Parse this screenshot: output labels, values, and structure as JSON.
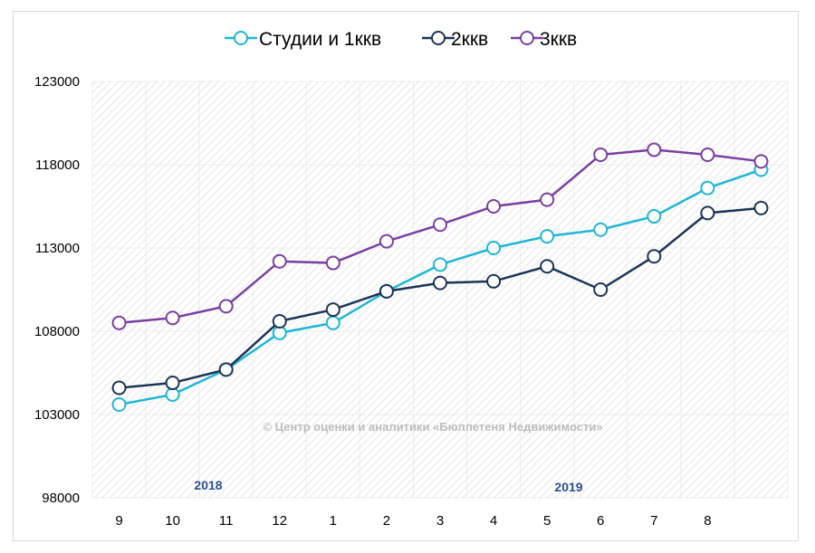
{
  "chart_data": {
    "type": "line",
    "title": "",
    "xlabel": "",
    "ylabel": "",
    "categories": [
      "9",
      "10",
      "11",
      "12",
      "1",
      "2",
      "3",
      "4",
      "5",
      "6",
      "7",
      "8",
      ""
    ],
    "ylim": [
      98000,
      123000
    ],
    "yticks": [
      "123000",
      "118000",
      "113000",
      "108000",
      "103000",
      "98000"
    ],
    "ytick_values": [
      123000,
      118000,
      113000,
      108000,
      103000,
      98000
    ],
    "grid": "diagonal hatch background",
    "legend_position": "top",
    "series": [
      {
        "name": "Студии и 1ккв",
        "color": "#1fb6d6",
        "values": [
          103600,
          104200,
          105700,
          107900,
          108500,
          110400,
          112000,
          113000,
          113700,
          114100,
          114900,
          116600,
          117700
        ]
      },
      {
        "name": "2ккв",
        "color": "#1b3557",
        "values": [
          104600,
          104900,
          105700,
          108600,
          109300,
          110400,
          110900,
          111000,
          111900,
          110500,
          112500,
          115100,
          115400
        ]
      },
      {
        "name": "3ккв",
        "color": "#7b3fa0",
        "values": [
          108500,
          108800,
          109500,
          112200,
          112100,
          113400,
          114400,
          115500,
          115900,
          118600,
          118900,
          118600,
          118200
        ]
      }
    ],
    "annotations": {
      "year_left": "2018",
      "year_right": "2019",
      "watermark": "© Центр оценки и аналитики «Бюллетеня Недвижимости»"
    }
  }
}
